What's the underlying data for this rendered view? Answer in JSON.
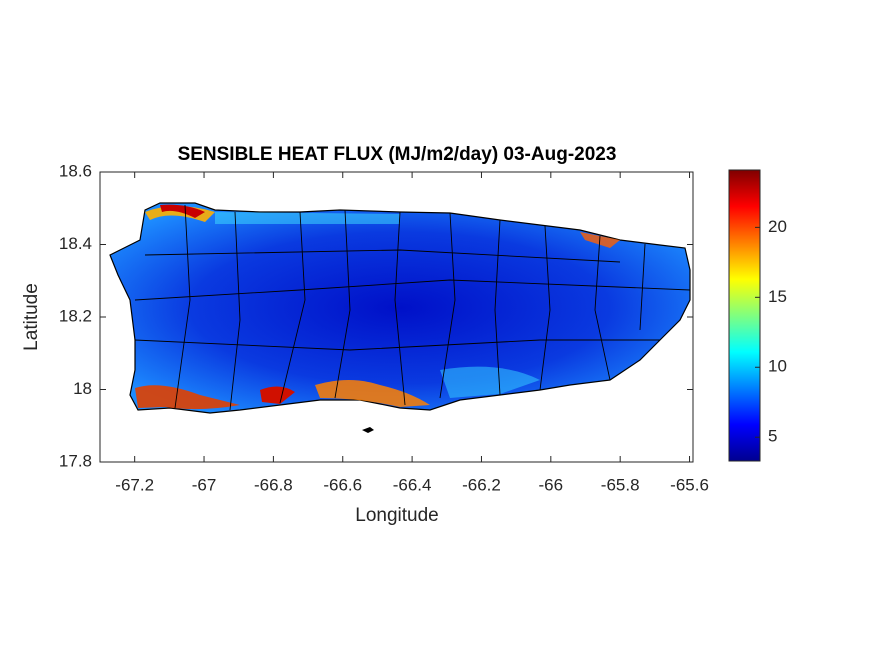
{
  "chart_data": {
    "type": "map",
    "title": "SENSIBLE HEAT FLUX (MJ/m2/day) 03-Aug-2023",
    "x_label": "Longitude",
    "y_label": "Latitude",
    "xlim": [
      -67.3,
      -65.59
    ],
    "xticks": [
      -67.2,
      -67,
      -66.8,
      -66.6,
      -66.4,
      -66.2,
      -66,
      -65.8,
      -65.6
    ],
    "ylim": [
      17.8,
      18.6
    ],
    "yticks": [
      17.8,
      18,
      18.2,
      18.4,
      18.6
    ],
    "colormap": "jet",
    "clim": [
      3.3,
      24.1
    ],
    "cticks": [
      5,
      10,
      15,
      20
    ]
  }
}
